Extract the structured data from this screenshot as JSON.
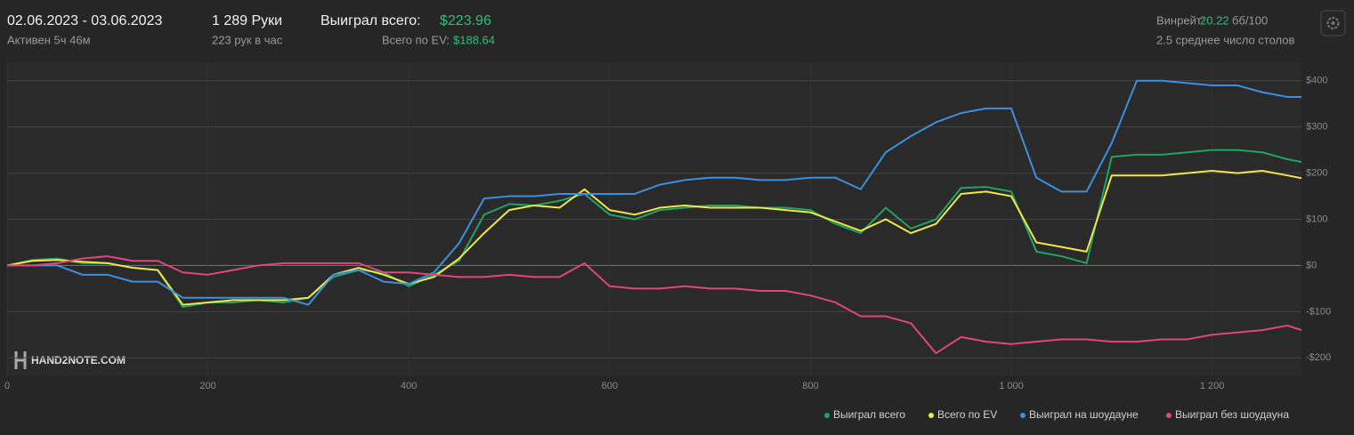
{
  "header": {
    "date_range": "02.06.2023 - 03.06.2023",
    "active": "Активен 5ч 46м",
    "hands": "1 289 Руки",
    "hands_per_hour": "223 рук в час",
    "won_total_label": "Выиграл всего:",
    "won_total": "$223.96",
    "ev_label": "Всего по EV:",
    "ev": "$188.64",
    "winrate_label": "Винрейт:",
    "winrate": "20.22",
    "winrate_unit": "бб/100",
    "tables": "2.5 среднее число столов"
  },
  "chart_data": {
    "type": "line",
    "watermark": "HAND2NOTE.COM",
    "x": [
      0,
      25,
      50,
      75,
      100,
      125,
      150,
      175,
      200,
      225,
      250,
      275,
      300,
      325,
      350,
      375,
      400,
      425,
      450,
      475,
      500,
      525,
      550,
      575,
      600,
      625,
      650,
      675,
      700,
      725,
      750,
      775,
      800,
      825,
      850,
      875,
      900,
      925,
      950,
      975,
      1000,
      1025,
      1050,
      1075,
      1100,
      1125,
      1150,
      1175,
      1200,
      1225,
      1250,
      1275,
      1289
    ],
    "series": [
      {
        "name": "Выиграл всего",
        "color": "#1fa463",
        "values": [
          0,
          12,
          15,
          5,
          5,
          -5,
          -10,
          -90,
          -80,
          -80,
          -75,
          -80,
          -70,
          -25,
          -10,
          -15,
          -45,
          -20,
          10,
          110,
          133,
          130,
          140,
          155,
          110,
          100,
          120,
          125,
          130,
          130,
          125,
          125,
          120,
          90,
          70,
          125,
          80,
          100,
          168,
          170,
          160,
          30,
          20,
          5,
          235,
          240,
          240,
          245,
          250,
          250,
          245,
          230,
          224
        ]
      },
      {
        "name": "Всего по EV",
        "color": "#f0e64a",
        "values": [
          0,
          10,
          12,
          8,
          5,
          -5,
          -10,
          -85,
          -80,
          -75,
          -75,
          -75,
          -70,
          -20,
          -5,
          -20,
          -40,
          -25,
          15,
          70,
          120,
          130,
          125,
          165,
          120,
          110,
          125,
          130,
          125,
          125,
          125,
          120,
          115,
          95,
          75,
          100,
          70,
          90,
          155,
          160,
          150,
          50,
          40,
          30,
          195,
          195,
          195,
          200,
          205,
          200,
          205,
          195,
          189
        ]
      },
      {
        "name": "Выиграл на шоудауне",
        "color": "#3b8fdd",
        "values": [
          0,
          0,
          0,
          -20,
          -20,
          -35,
          -35,
          -70,
          -70,
          -70,
          -70,
          -70,
          -85,
          -20,
          -10,
          -35,
          -40,
          -15,
          48,
          145,
          150,
          150,
          155,
          155,
          155,
          155,
          175,
          185,
          190,
          190,
          185,
          185,
          190,
          190,
          165,
          245,
          280,
          310,
          330,
          340,
          340,
          190,
          160,
          160,
          265,
          400,
          400,
          395,
          390,
          390,
          375,
          365,
          365
        ]
      },
      {
        "name": "Выиграл без шоудауна",
        "color": "#e0467b",
        "values": [
          0,
          0,
          5,
          15,
          20,
          10,
          10,
          -15,
          -20,
          -10,
          0,
          5,
          5,
          5,
          5,
          -15,
          -15,
          -20,
          -25,
          -25,
          -20,
          -25,
          -25,
          5,
          -45,
          -50,
          -50,
          -45,
          -50,
          -50,
          -55,
          -55,
          -65,
          -80,
          -110,
          -110,
          -125,
          -190,
          -155,
          -165,
          -170,
          -165,
          -160,
          -160,
          -165,
          -165,
          -160,
          -160,
          -150,
          -145,
          -140,
          -130,
          -140
        ]
      }
    ],
    "xlim": [
      0,
      1289
    ],
    "xticks": [
      0,
      200,
      400,
      600,
      800,
      {
        "value": 1000,
        "label": "1 000"
      },
      {
        "value": 1200,
        "label": "1 200"
      }
    ],
    "ylim": [
      -238,
      440
    ],
    "yticks": [
      {
        "value": -200,
        "label": "-$200"
      },
      {
        "value": -100,
        "label": "-$100"
      },
      {
        "value": 0,
        "label": "$0"
      },
      {
        "value": 100,
        "label": "$100"
      },
      {
        "value": 200,
        "label": "$200"
      },
      {
        "value": 300,
        "label": "$300"
      },
      {
        "value": 400,
        "label": "$400"
      }
    ],
    "grid": true
  }
}
